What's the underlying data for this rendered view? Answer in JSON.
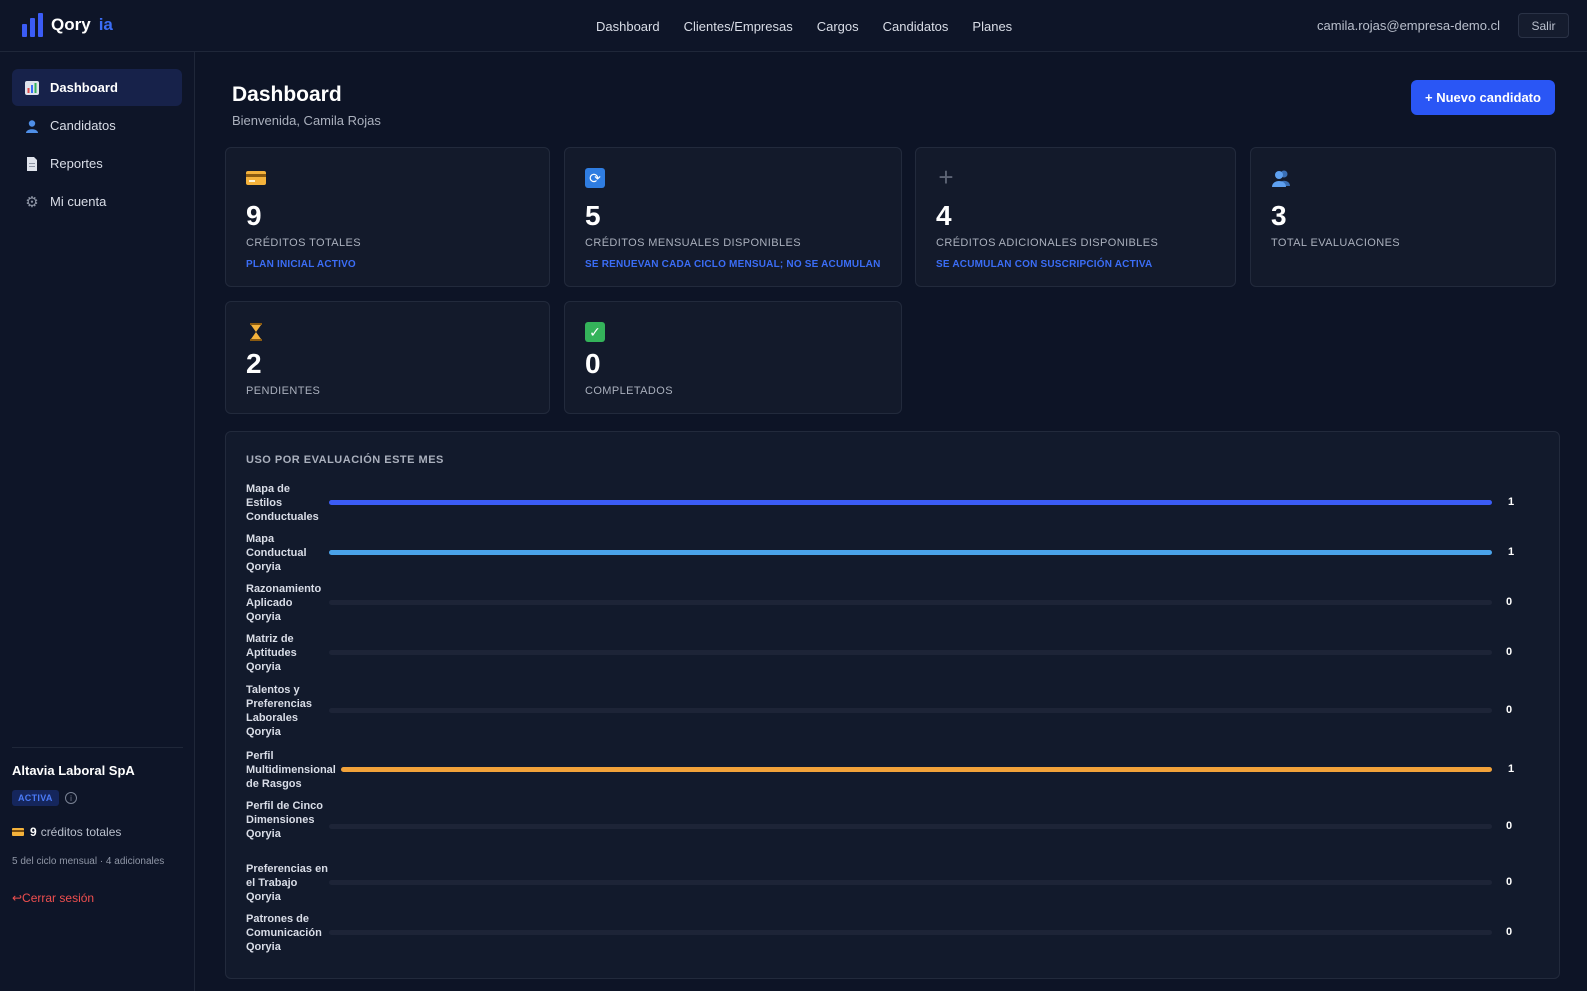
{
  "app": {
    "name": "Qory",
    "name_suffix": "ia"
  },
  "topnav": {
    "items": [
      "Dashboard",
      "Clientes/Empresas",
      "Cargos",
      "Candidatos",
      "Planes"
    ]
  },
  "user": {
    "email": "camila.rojas@empresa-demo.cl",
    "logout_label": "Salir"
  },
  "sidebar": {
    "items": [
      {
        "label": "Dashboard",
        "icon": "bar-chart-icon",
        "active": true
      },
      {
        "label": "Candidatos",
        "icon": "user-icon",
        "active": false
      },
      {
        "label": "Reportes",
        "icon": "document-icon",
        "active": false
      },
      {
        "label": "Mi cuenta",
        "icon": "gear-icon",
        "active": false
      }
    ],
    "company": {
      "name": "Altavia Laboral SpA",
      "status": "ACTIVA",
      "credits_value": "9",
      "credits_label": "créditos totales",
      "breakdown": "5 del ciclo mensual · 4 adicionales",
      "logout_label": "↩Cerrar sesión"
    }
  },
  "header": {
    "title": "Dashboard",
    "subtitle": "Bienvenida, Camila Rojas",
    "new_button": "+ Nuevo candidato"
  },
  "stats": [
    {
      "icon": "credit-card-icon",
      "value": "9",
      "label": "Créditos totales",
      "note": "Plan Inicial activo"
    },
    {
      "icon": "refresh-icon",
      "value": "5",
      "label": "Créditos mensuales disponibles",
      "note": "Se renuevan cada ciclo mensual; no se acumulan"
    },
    {
      "icon": "plus-icon",
      "value": "4",
      "label": "Créditos adicionales disponibles",
      "note": "Se acumulan con suscripción activa"
    },
    {
      "icon": "users-icon",
      "value": "3",
      "label": "Total evaluaciones",
      "note": ""
    },
    {
      "icon": "hourglass-icon",
      "value": "2",
      "label": "Pendientes",
      "note": ""
    },
    {
      "icon": "check-icon",
      "value": "0",
      "label": "Completados",
      "note": ""
    }
  ],
  "usage": {
    "title": "USO POR EVALUACIÓN ESTE MES",
    "max": 1,
    "rows": [
      {
        "label": "Mapa de Estilos Conductuales",
        "value": 1,
        "color": "#3b5cf6"
      },
      {
        "label": "Mapa Conductual Qoryia",
        "value": 1,
        "color": "#4aa3ea"
      },
      {
        "label": "Razonamiento Aplicado Qoryia",
        "value": 0,
        "color": "#1d2437"
      },
      {
        "label": "Matriz de Aptitudes Qoryia",
        "value": 0,
        "color": "#1d2437"
      },
      {
        "label": "Talentos y Preferencias Laborales Qoryia",
        "value": 0,
        "color": "#1d2437"
      },
      {
        "label": "Perfil Multidimensional de Rasgos",
        "value": 1,
        "color": "#f2a23a"
      },
      {
        "label": "Perfil de Cinco Dimensiones Qoryia",
        "value": 0,
        "color": "#1d2437"
      },
      {
        "label": "Preferencias en el Trabajo Qoryia",
        "value": 0,
        "color": "#1d2437"
      },
      {
        "label": "Patrones de Comunicación Qoryia",
        "value": 0,
        "color": "#1d2437"
      }
    ]
  },
  "colors": {
    "accent": "#2a56f5",
    "background": "#0d1426",
    "card": "#131a2b",
    "danger": "#ef4f4f"
  }
}
